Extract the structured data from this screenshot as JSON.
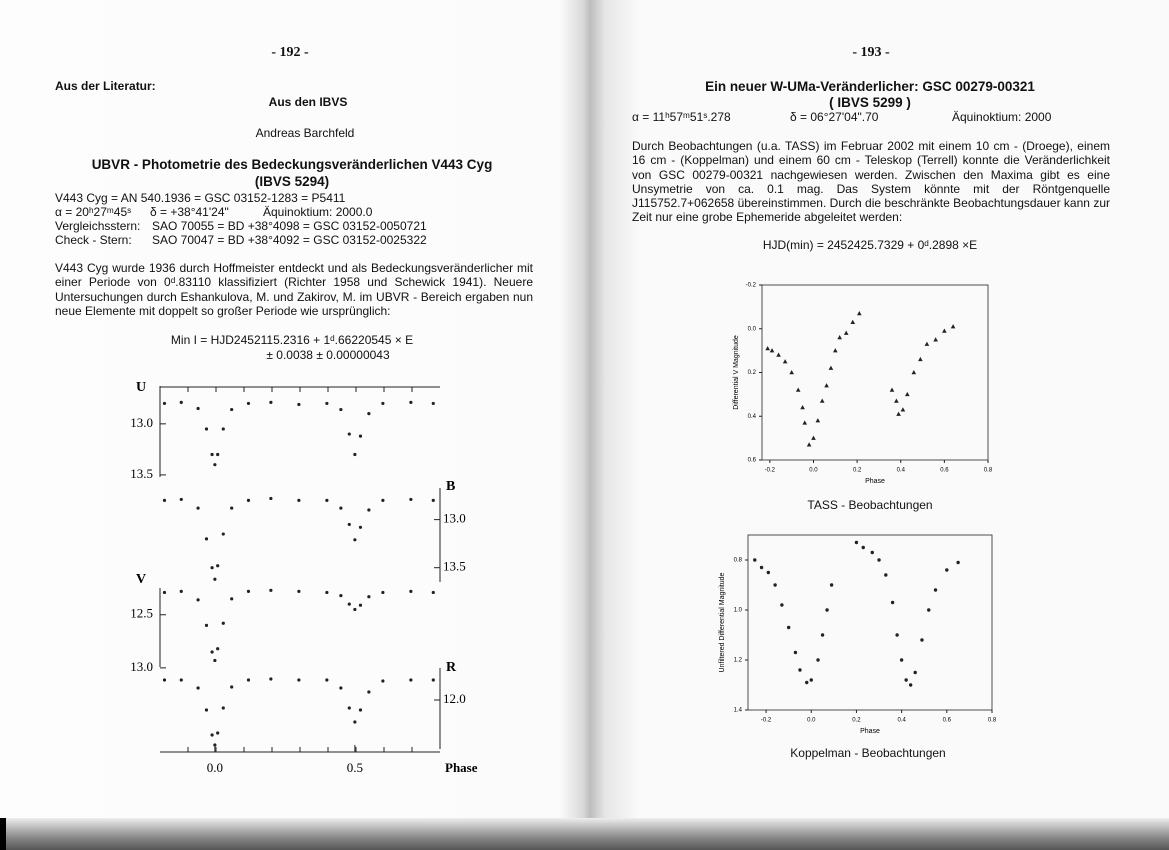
{
  "left_page": {
    "page_number": "- 192 -",
    "section": "Aus der Literatur:",
    "subsection": "Aus den IBVS",
    "author": "Andreas Barchfeld",
    "title_lines": [
      "UBVR - Photometrie des Bedeckungsveränderlichen V443 Cyg",
      "(IBVS 5294)"
    ],
    "info": {
      "designations": "V443 Cyg = AN 540.1936 = GSC 03152-1283 = P5411",
      "ra": "α = 20ʰ27ᵐ45ˢ",
      "dec": "δ = +38°41'24\"",
      "equinox": "Äquinoktium: 2000.0",
      "comparison_label": "Vergleichsstern:",
      "comparison": "SAO 70055 = BD +38°4098 = GSC 03152-0050721",
      "check_label": "Check - Stern:",
      "check": "SAO 70047 = BD +38°4092 = GSC 03152-0025322"
    },
    "paragraph": "V443 Cyg wurde 1936 durch Hoffmeister entdeckt und als Bedeckungsveränderlicher mit einer Periode von 0ᵈ.83110 klassifiziert (Richter 1958 und Schewick 1941). Neuere Untersuchungen durch Eshankulova, M. und Zakirov, M. im UBVR - Bereich ergaben nun neue Elemente mit doppelt so großer Periode wie ursprünglich:",
    "formula_lines": [
      "Min I = HJD2452115.2316 + 1ᵈ.66220545 × E",
      "± 0.0038 ± 0.00000043"
    ],
    "figure": {
      "x_label": "Phase",
      "xlim": [
        -0.196,
        0.804
      ],
      "xticks": [
        {
          "value": 0,
          "label": "0.0"
        },
        0.5
      ],
      "x": [
        -0.18,
        -0.12,
        -0.06,
        -0.03,
        -0.01,
        0.0,
        0.01,
        0.03,
        0.06,
        0.12,
        0.2,
        0.3,
        0.4,
        0.45,
        0.48,
        0.5,
        0.52,
        0.55,
        0.6,
        0.7,
        0.78
      ],
      "panels": [
        {
          "name": "U",
          "ylim": [
            12.6,
            13.55
          ],
          "yticks": [
            {
              "value": 13,
              "label": "13.0"
            },
            13.5
          ],
          "values": [
            12.8,
            12.79,
            12.85,
            13.05,
            13.3,
            13.4,
            13.3,
            13.05,
            12.86,
            12.8,
            12.79,
            12.81,
            12.8,
            12.86,
            13.1,
            13.3,
            13.12,
            12.9,
            12.8,
            12.79,
            12.8
          ]
        },
        {
          "name": "B",
          "ylim": [
            12.64,
            13.68
          ],
          "yticks": [
            {
              "value": 13,
              "label": "13.0"
            },
            13.5
          ],
          "values": [
            12.8,
            12.79,
            12.88,
            13.2,
            13.5,
            13.62,
            13.48,
            13.15,
            12.88,
            12.8,
            12.78,
            12.8,
            12.8,
            12.88,
            13.05,
            13.21,
            13.08,
            12.9,
            12.8,
            12.79,
            12.8
          ]
        },
        {
          "name": "V",
          "ylim": [
            12.22,
            13.02
          ],
          "yticks": [
            12.5,
            {
              "value": 13,
              "label": "13.0"
            }
          ],
          "values": [
            12.29,
            12.28,
            12.36,
            12.6,
            12.85,
            12.93,
            12.82,
            12.58,
            12.35,
            12.28,
            12.27,
            12.28,
            12.29,
            12.32,
            12.4,
            12.45,
            12.41,
            12.33,
            12.29,
            12.28,
            12.29
          ]
        },
        {
          "name": "R",
          "ylim": [
            11.65,
            12.52
          ],
          "yticks": [
            {
              "value": 12,
              "label": "12.0"
            }
          ],
          "values": [
            11.8,
            11.8,
            11.88,
            12.1,
            12.35,
            12.45,
            12.33,
            12.08,
            11.87,
            11.8,
            11.79,
            11.8,
            11.8,
            11.88,
            12.08,
            12.22,
            12.1,
            11.92,
            11.81,
            11.8,
            11.8
          ]
        }
      ]
    }
  },
  "right_page": {
    "page_number": "- 193 -",
    "title_lines": [
      "Ein neuer W-UMa-Veränderlicher: GSC 00279-00321",
      "( IBVS 5299 )"
    ],
    "ra": "α = 11ʰ57ᵐ51ˢ.278",
    "dec": "δ = 06°27'04\".70",
    "equinox": "Äquinoktium: 2000",
    "paragraph": "Durch Beobachtungen (u.a. TASS) im Februar 2002 mit einem 10 cm - (Droege), einem 16 cm - (Koppelman) und einem 60 cm - Teleskop (Terrell) konnte die Veränderlichkeit von GSC 00279-00321 nachgewiesen werden. Zwischen den Maxima gibt es eine Unsymetrie von ca. 0.1 mag. Das System könnte mit der Röntgenquelle J115752.7+062658 übereinstimmen. Durch die beschränkte Beobachtungsdauer kann zur Zeit nur eine grobe Ephemeride abgeleitet werden:",
    "ephemeris": "HJD(min) = 2452425.7329 + 0ᵈ.2898 ×E",
    "tass_plot": {
      "y_label": "Differential V Magnitude",
      "x_label": "Phase",
      "caption": "TASS - Beobachtungen",
      "xlim": [
        -0.236,
        0.8
      ],
      "ylim": [
        -0.2,
        0.6
      ],
      "xticks": [
        -0.2,
        {
          "value": 0,
          "label": "0.0"
        },
        0.2,
        0.4,
        0.6,
        0.8
      ],
      "yticks": [
        -0.2,
        {
          "value": 0,
          "label": "0.0"
        },
        0.2,
        0.4,
        0.6
      ],
      "x": [
        -0.21,
        -0.19,
        -0.16,
        -0.13,
        -0.1,
        -0.07,
        -0.05,
        -0.04,
        -0.02,
        0.0,
        0.02,
        0.04,
        0.06,
        0.08,
        0.1,
        0.12,
        0.15,
        0.18,
        0.21,
        0.36,
        0.38,
        0.39,
        0.41,
        0.43,
        0.46,
        0.49,
        0.52,
        0.56,
        0.6,
        0.64
      ],
      "values": [
        0.09,
        0.1,
        0.12,
        0.15,
        0.2,
        0.28,
        0.36,
        0.43,
        0.53,
        0.5,
        0.42,
        0.33,
        0.26,
        0.18,
        0.1,
        0.04,
        0.02,
        -0.03,
        -0.07,
        0.28,
        0.33,
        0.39,
        0.37,
        0.3,
        0.2,
        0.14,
        0.07,
        0.05,
        0.01,
        -0.01
      ]
    },
    "koppelman_plot": {
      "y_label": "Unfiltered Differential Magnitude",
      "x_label": "Phase",
      "caption": "Koppelman - Beobachtungen",
      "xlim": [
        -0.28,
        0.8
      ],
      "ylim": [
        0.7,
        1.4
      ],
      "xticks": [
        -0.2,
        {
          "value": 0,
          "label": "0.0"
        },
        0.2,
        0.4,
        0.6,
        0.8
      ],
      "yticks": [
        0.8,
        {
          "value": 1,
          "label": "1.0"
        },
        1.2,
        1.4
      ],
      "x": [
        -0.25,
        -0.22,
        -0.19,
        -0.16,
        -0.13,
        -0.1,
        -0.07,
        -0.05,
        -0.02,
        0.0,
        0.03,
        0.05,
        0.07,
        0.09,
        0.2,
        0.23,
        0.27,
        0.3,
        0.33,
        0.36,
        0.38,
        0.4,
        0.42,
        0.44,
        0.46,
        0.49,
        0.52,
        0.55,
        0.6,
        0.65
      ],
      "values": [
        0.8,
        0.83,
        0.85,
        0.9,
        0.98,
        1.07,
        1.17,
        1.24,
        1.29,
        1.28,
        1.2,
        1.1,
        1.0,
        0.9,
        0.73,
        0.75,
        0.77,
        0.8,
        0.86,
        0.97,
        1.1,
        1.2,
        1.28,
        1.3,
        1.25,
        1.12,
        1.0,
        0.92,
        0.84,
        0.81
      ]
    }
  }
}
